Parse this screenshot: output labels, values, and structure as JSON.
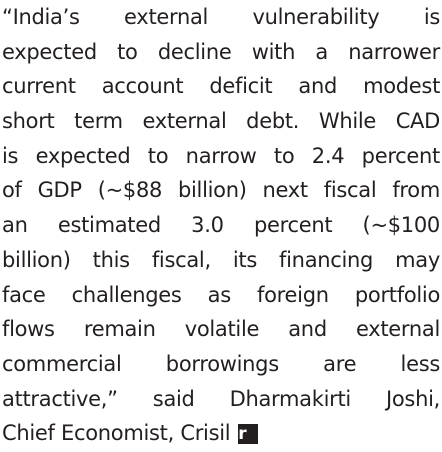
{
  "quote": {
    "lines": [
      "“India’s external vulnerability is",
      "expected to decline with a narrower",
      "current account deficit and modest",
      "short term external debt. While CAD",
      "is expected to narrow to 2.4 percent",
      "of GDP (~$88 billion) next fiscal from",
      "an estimated 3.0 percent (~$100",
      "billion) this fiscal, its financing may",
      "face challenges as foreign portfolio",
      "flows remain volatile and external",
      "commercial borrowings are less",
      "attractive,” said Dharmakirti Joshi,",
      "Chief Economist, Crisil"
    ],
    "end_mark": "r"
  }
}
